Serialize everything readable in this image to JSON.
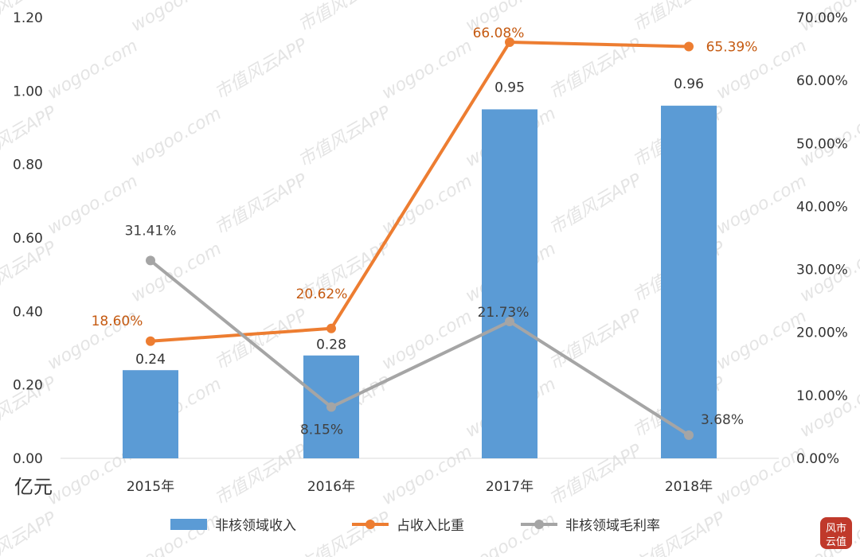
{
  "chart_data": {
    "type": "bar",
    "categories": [
      "2015年",
      "2016年",
      "2017年",
      "2018年"
    ],
    "y_left_unit": "亿元",
    "y_left_ticks": [
      "0.00",
      "0.20",
      "0.40",
      "0.60",
      "0.80",
      "1.00",
      "1.20"
    ],
    "y_left_range": [
      0,
      1.2
    ],
    "y_right_ticks": [
      "0.00%",
      "10.00%",
      "20.00%",
      "30.00%",
      "40.00%",
      "50.00%",
      "60.00%",
      "70.00%"
    ],
    "y_right_range": [
      0,
      70
    ],
    "grid": false,
    "legend_position": "bottom",
    "series": [
      {
        "name": "非核领域收入",
        "kind": "bar",
        "axis": "left",
        "values": [
          0.24,
          0.28,
          0.95,
          0.96
        ],
        "labels": [
          "0.24",
          "0.28",
          "0.95",
          "0.96"
        ],
        "color": "#5b9bd5"
      },
      {
        "name": "占收入比重",
        "kind": "line",
        "axis": "right",
        "values": [
          18.6,
          20.62,
          66.08,
          65.39
        ],
        "labels": [
          "18.60%",
          "20.62%",
          "66.08%",
          "65.39%"
        ],
        "color": "#ed7d31",
        "label_color": "#c55a11"
      },
      {
        "name": "非核领域毛利率",
        "kind": "line",
        "axis": "right",
        "values": [
          31.41,
          8.15,
          21.73,
          3.68
        ],
        "labels": [
          "31.41%",
          "8.15%",
          "21.73%",
          "3.68%"
        ],
        "color": "#a5a5a5",
        "label_color": "#404040"
      }
    ]
  },
  "watermark": {
    "text_cn": "市值风云APP",
    "text_url": "wogoo.com"
  },
  "logo": {
    "text": "市值风云"
  }
}
